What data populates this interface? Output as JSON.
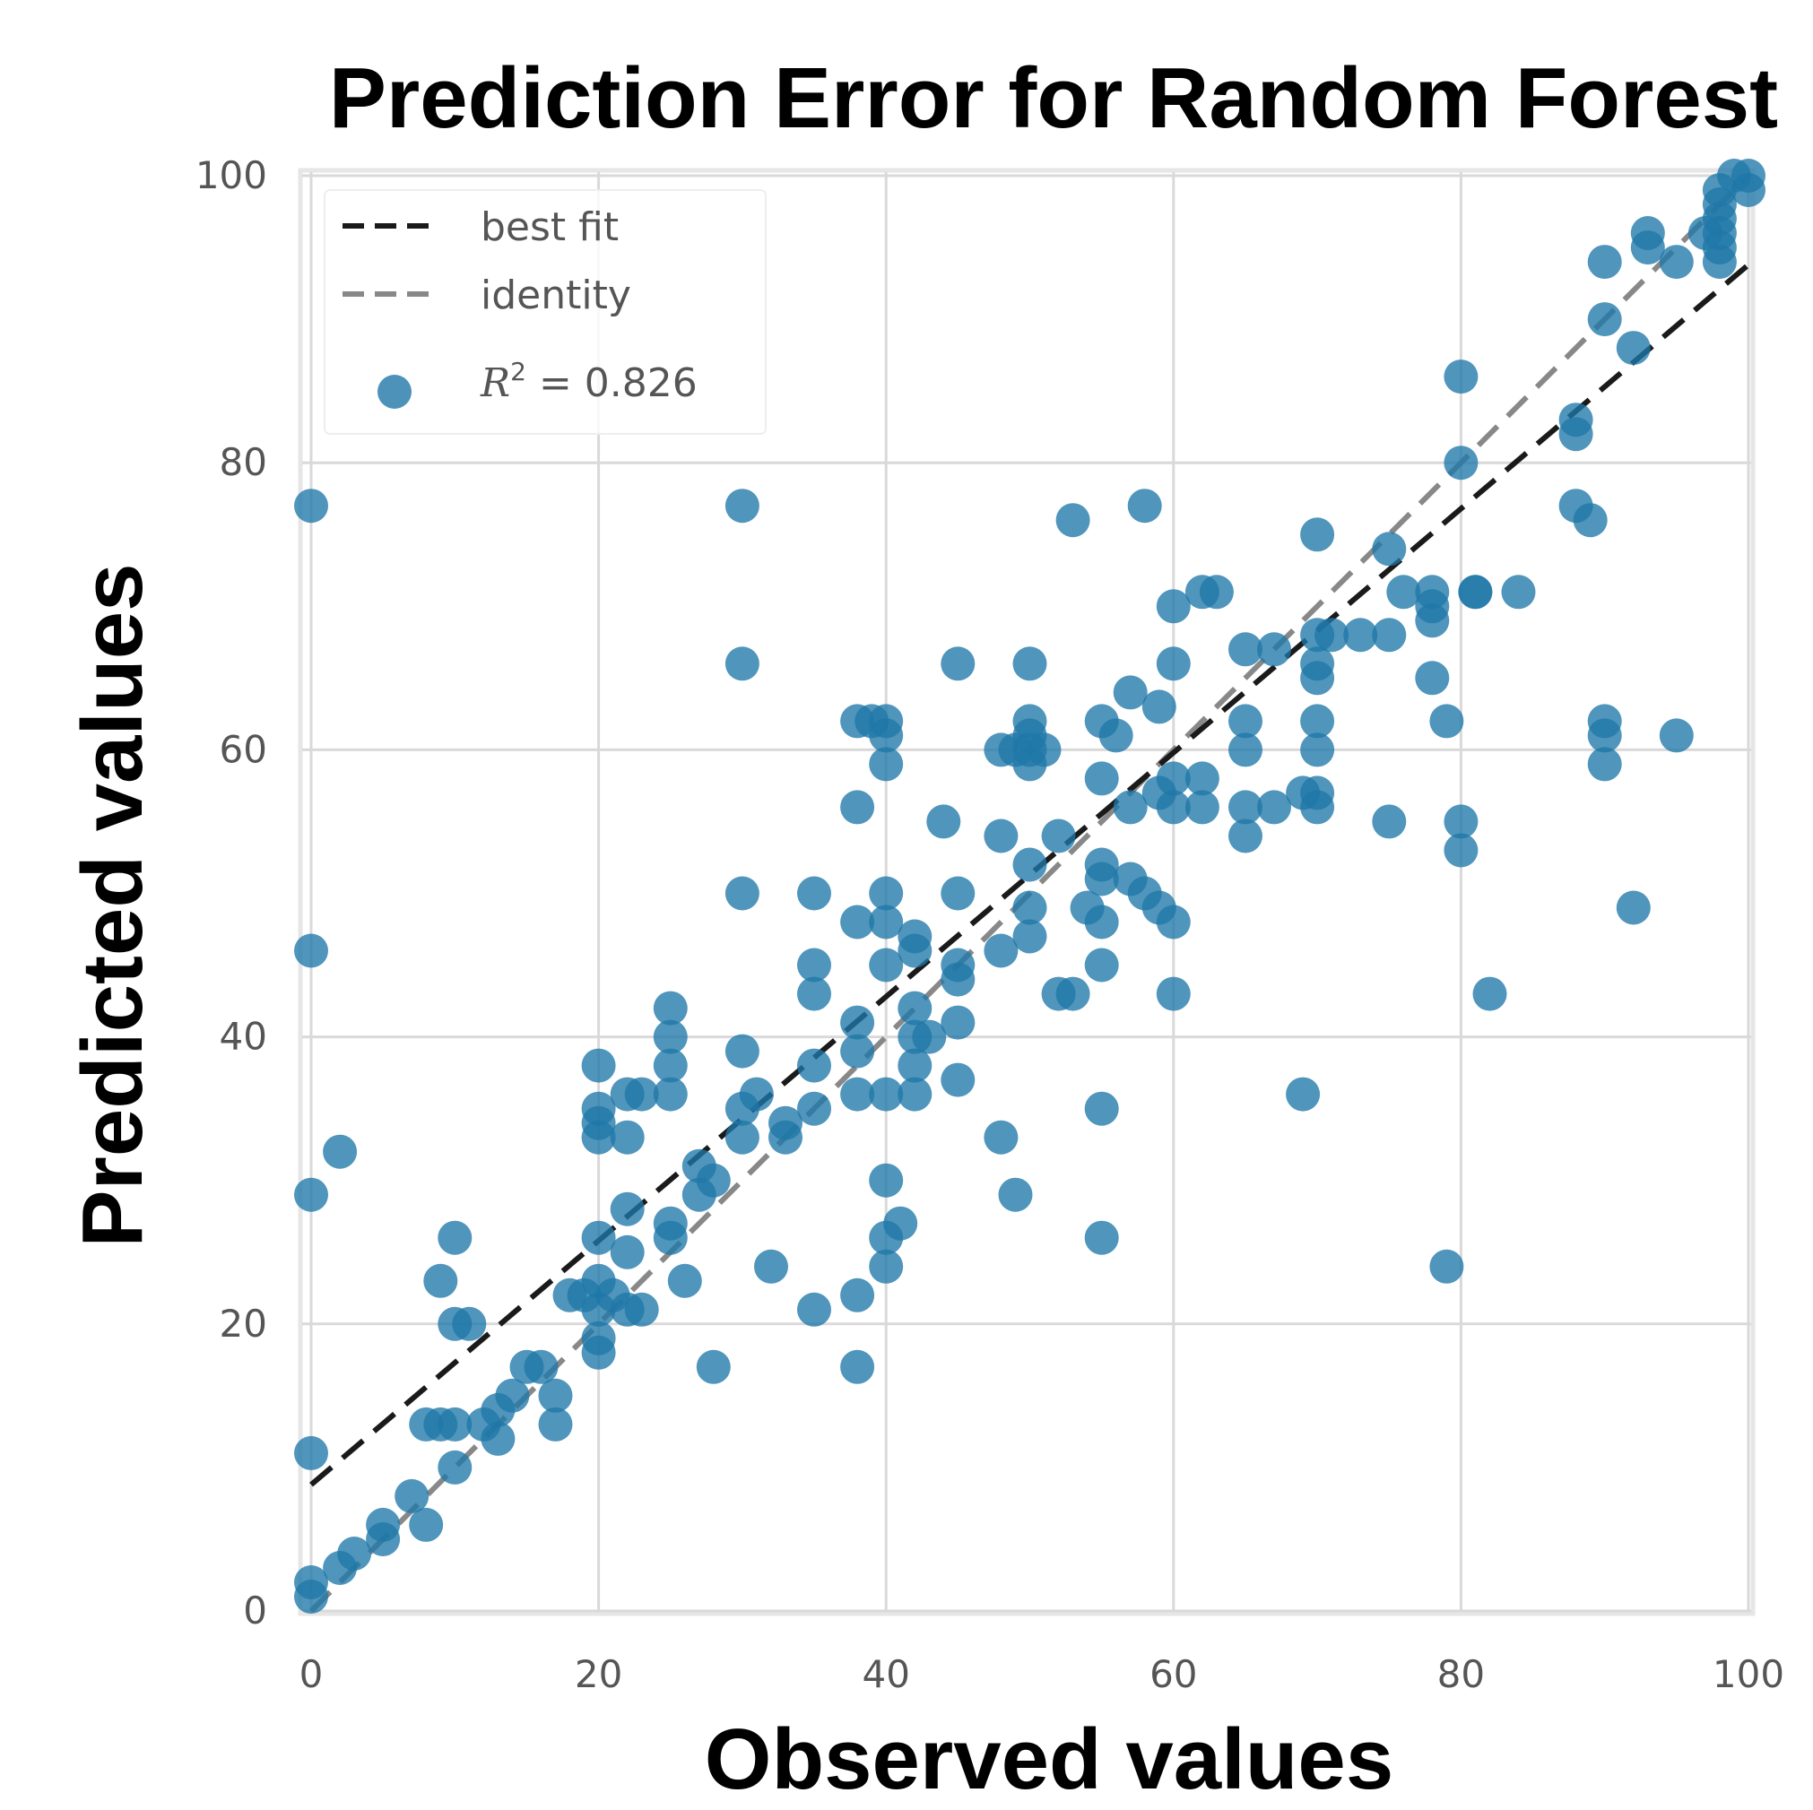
{
  "chart_data": {
    "type": "scatter",
    "title": "Prediction Error for Random Forest",
    "xlabel": "Observed values",
    "ylabel": "Predicted values",
    "xlim": [
      0,
      100
    ],
    "ylim": [
      0,
      100
    ],
    "xticks": [
      "0",
      "20",
      "40",
      "60",
      "80",
      "100"
    ],
    "yticks": [
      "0",
      "20",
      "40",
      "60",
      "80",
      "100"
    ],
    "grid": true,
    "legend_position": "top-left",
    "legend": {
      "best_fit_label": "best fit",
      "identity_label": "identity",
      "r2_symbol": "R",
      "r2_exponent": "2",
      "r2_text": " = 0.826"
    },
    "best_fit": {
      "intercept": 8.8,
      "slope": 0.85
    },
    "colors": {
      "points": "#1f77a8",
      "best_fit": "#1a1a1a",
      "identity": "#888888",
      "grid": "#d9d9d9",
      "frame": "#e6e6e6"
    },
    "points": [
      [
        0,
        77
      ],
      [
        0,
        46
      ],
      [
        0,
        29
      ],
      [
        2,
        32
      ],
      [
        0,
        11
      ],
      [
        0,
        2
      ],
      [
        0,
        1
      ],
      [
        2,
        3
      ],
      [
        3,
        4
      ],
      [
        5,
        5
      ],
      [
        5,
        6
      ],
      [
        7,
        8
      ],
      [
        8,
        6
      ],
      [
        8,
        13
      ],
      [
        9,
        13
      ],
      [
        10,
        13
      ],
      [
        10,
        10
      ],
      [
        10,
        20
      ],
      [
        11,
        20
      ],
      [
        10,
        26
      ],
      [
        9,
        23
      ],
      [
        12,
        13
      ],
      [
        13,
        14
      ],
      [
        13,
        12
      ],
      [
        14,
        15
      ],
      [
        15,
        17
      ],
      [
        16,
        17
      ],
      [
        17,
        15
      ],
      [
        17,
        13
      ],
      [
        18,
        22
      ],
      [
        19,
        22
      ],
      [
        20,
        18
      ],
      [
        20,
        19
      ],
      [
        20,
        21
      ],
      [
        20,
        23
      ],
      [
        20,
        26
      ],
      [
        20,
        33
      ],
      [
        20,
        34
      ],
      [
        20,
        35
      ],
      [
        20,
        38
      ],
      [
        21,
        22
      ],
      [
        22,
        25
      ],
      [
        22,
        21
      ],
      [
        22,
        28
      ],
      [
        23,
        21
      ],
      [
        22,
        33
      ],
      [
        22,
        36
      ],
      [
        23,
        36
      ],
      [
        25,
        42
      ],
      [
        25,
        40
      ],
      [
        25,
        38
      ],
      [
        25,
        36
      ],
      [
        25,
        27
      ],
      [
        25,
        26
      ],
      [
        26,
        23
      ],
      [
        27,
        29
      ],
      [
        27,
        31
      ],
      [
        28,
        17
      ],
      [
        28,
        30
      ],
      [
        30,
        77
      ],
      [
        30,
        66
      ],
      [
        30,
        50
      ],
      [
        30,
        39
      ],
      [
        30,
        33
      ],
      [
        30,
        35
      ],
      [
        31,
        36
      ],
      [
        32,
        24
      ],
      [
        33,
        33
      ],
      [
        33,
        34
      ],
      [
        35,
        50
      ],
      [
        35,
        45
      ],
      [
        35,
        43
      ],
      [
        35,
        38
      ],
      [
        35,
        35
      ],
      [
        35,
        21
      ],
      [
        38,
        62
      ],
      [
        38,
        56
      ],
      [
        38,
        48
      ],
      [
        38,
        41
      ],
      [
        38,
        39
      ],
      [
        38,
        36
      ],
      [
        38,
        22
      ],
      [
        38,
        17
      ],
      [
        39,
        62
      ],
      [
        40,
        62
      ],
      [
        40,
        61
      ],
      [
        40,
        59
      ],
      [
        40,
        50
      ],
      [
        40,
        48
      ],
      [
        40,
        45
      ],
      [
        40,
        36
      ],
      [
        40,
        30
      ],
      [
        40,
        24
      ],
      [
        40,
        26
      ],
      [
        41,
        27
      ],
      [
        42,
        47
      ],
      [
        42,
        46
      ],
      [
        42,
        42
      ],
      [
        42,
        40
      ],
      [
        42,
        38
      ],
      [
        42,
        36
      ],
      [
        43,
        40
      ],
      [
        44,
        55
      ],
      [
        45,
        66
      ],
      [
        45,
        50
      ],
      [
        45,
        45
      ],
      [
        45,
        44
      ],
      [
        45,
        41
      ],
      [
        45,
        37
      ],
      [
        48,
        54
      ],
      [
        48,
        46
      ],
      [
        48,
        33
      ],
      [
        49,
        29
      ],
      [
        48,
        60
      ],
      [
        49,
        60
      ],
      [
        50,
        66
      ],
      [
        50,
        62
      ],
      [
        50,
        61
      ],
      [
        50,
        60
      ],
      [
        50,
        59
      ],
      [
        50,
        52
      ],
      [
        50,
        49
      ],
      [
        50,
        47
      ],
      [
        51,
        60
      ],
      [
        52,
        54
      ],
      [
        52,
        43
      ],
      [
        53,
        43
      ],
      [
        53,
        76
      ],
      [
        54,
        49
      ],
      [
        55,
        62
      ],
      [
        55,
        58
      ],
      [
        55,
        52
      ],
      [
        55,
        51
      ],
      [
        55,
        48
      ],
      [
        55,
        45
      ],
      [
        55,
        35
      ],
      [
        55,
        26
      ],
      [
        56,
        61
      ],
      [
        57,
        64
      ],
      [
        57,
        56
      ],
      [
        57,
        51
      ],
      [
        58,
        77
      ],
      [
        58,
        50
      ],
      [
        59,
        63
      ],
      [
        59,
        57
      ],
      [
        59,
        49
      ],
      [
        60,
        70
      ],
      [
        60,
        66
      ],
      [
        60,
        58
      ],
      [
        60,
        56
      ],
      [
        60,
        48
      ],
      [
        60,
        43
      ],
      [
        62,
        71
      ],
      [
        62,
        58
      ],
      [
        62,
        56
      ],
      [
        63,
        71
      ],
      [
        65,
        67
      ],
      [
        65,
        62
      ],
      [
        65,
        60
      ],
      [
        65,
        56
      ],
      [
        65,
        54
      ],
      [
        67,
        67
      ],
      [
        67,
        56
      ],
      [
        69,
        36
      ],
      [
        69,
        57
      ],
      [
        70,
        75
      ],
      [
        70,
        68
      ],
      [
        70,
        66
      ],
      [
        70,
        65
      ],
      [
        70,
        62
      ],
      [
        70,
        60
      ],
      [
        70,
        57
      ],
      [
        70,
        56
      ],
      [
        71,
        68
      ],
      [
        73,
        68
      ],
      [
        75,
        74
      ],
      [
        75,
        68
      ],
      [
        75,
        55
      ],
      [
        76,
        71
      ],
      [
        78,
        71
      ],
      [
        78,
        70
      ],
      [
        78,
        69
      ],
      [
        78,
        65
      ],
      [
        79,
        62
      ],
      [
        79,
        24
      ],
      [
        80,
        86
      ],
      [
        80,
        80
      ],
      [
        80,
        55
      ],
      [
        80,
        53
      ],
      [
        81,
        71
      ],
      [
        81,
        71
      ],
      [
        82,
        43
      ],
      [
        84,
        71
      ],
      [
        88,
        83
      ],
      [
        88,
        82
      ],
      [
        88,
        77
      ],
      [
        89,
        76
      ],
      [
        90,
        94
      ],
      [
        90,
        90
      ],
      [
        90,
        62
      ],
      [
        90,
        61
      ],
      [
        90,
        59
      ],
      [
        92,
        88
      ],
      [
        92,
        49
      ],
      [
        93,
        96
      ],
      [
        93,
        95
      ],
      [
        95,
        94
      ],
      [
        95,
        61
      ],
      [
        97,
        96
      ],
      [
        98,
        99
      ],
      [
        98,
        98
      ],
      [
        98,
        97
      ],
      [
        98,
        96
      ],
      [
        98,
        95
      ],
      [
        98,
        94
      ],
      [
        99,
        100
      ],
      [
        100,
        100
      ],
      [
        100,
        99
      ]
    ]
  }
}
